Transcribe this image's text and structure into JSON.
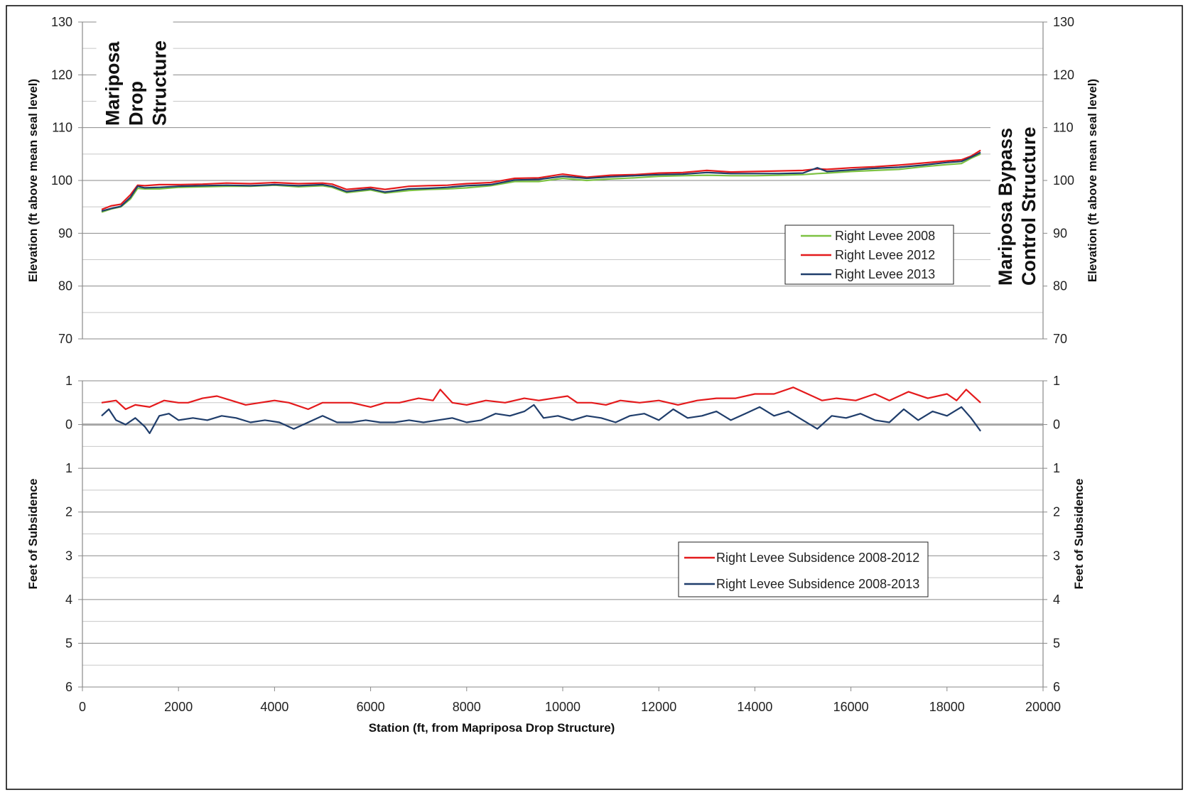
{
  "chart_data": [
    {
      "type": "line",
      "xlabel": "",
      "ylabel": "Elevation (ft above mean seal level)",
      "ylabel_right": "Elevation (ft above mean seal level)",
      "xlim": [
        0,
        20000
      ],
      "ylim": [
        70,
        130
      ],
      "yticks": [
        70,
        80,
        90,
        100,
        110,
        120,
        130
      ],
      "grid": true,
      "legend_position": "right",
      "annotations": [
        {
          "text": [
            "Mariposa",
            "Drop",
            "Structure"
          ],
          "x": 1000,
          "y": 123
        },
        {
          "text": [
            "Mariposa Bypass",
            "Control Structure"
          ],
          "x": 19400,
          "y": 90
        }
      ],
      "series": [
        {
          "name": "Right Levee 2008",
          "color": "#7dc242",
          "x": [
            400,
            600,
            800,
            1000,
            1150,
            1300,
            1600,
            2000,
            2500,
            3000,
            3500,
            4000,
            4500,
            5000,
            5200,
            5500,
            6000,
            6300,
            6800,
            7200,
            7600,
            8000,
            8500,
            9000,
            9500,
            10000,
            10500,
            11000,
            11500,
            12000,
            12500,
            13000,
            13500,
            14000,
            14500,
            15000,
            15300,
            15500,
            16000,
            16500,
            17000,
            17500,
            18000,
            18300,
            18500,
            18700
          ],
          "y": [
            94.0,
            94.6,
            95.0,
            96.5,
            98.5,
            98.4,
            98.4,
            98.7,
            98.8,
            98.9,
            98.9,
            99.1,
            98.8,
            99.0,
            98.7,
            97.7,
            98.2,
            97.6,
            98.1,
            98.3,
            98.4,
            98.6,
            99.0,
            99.8,
            99.8,
            100.4,
            100.0,
            100.3,
            100.5,
            100.8,
            100.9,
            101.0,
            100.9,
            100.9,
            101.0,
            101.1,
            101.3,
            101.4,
            101.7,
            101.9,
            102.1,
            102.6,
            103.0,
            103.2,
            104.2,
            105.0
          ]
        },
        {
          "name": "Right Levee 2012",
          "color": "#e41a1c",
          "x": [
            400,
            600,
            800,
            1000,
            1150,
            1300,
            1600,
            2000,
            2500,
            3000,
            3500,
            4000,
            4500,
            5000,
            5200,
            5500,
            6000,
            6300,
            6800,
            7200,
            7600,
            8000,
            8500,
            9000,
            9500,
            10000,
            10500,
            11000,
            11500,
            12000,
            12500,
            13000,
            13500,
            14000,
            14500,
            15000,
            15300,
            15500,
            16000,
            16500,
            17000,
            17500,
            18000,
            18300,
            18500,
            18700
          ],
          "y": [
            94.5,
            95.2,
            95.5,
            97.3,
            99.1,
            99.0,
            99.2,
            99.2,
            99.3,
            99.5,
            99.4,
            99.6,
            99.4,
            99.5,
            99.3,
            98.3,
            98.7,
            98.3,
            98.9,
            99.0,
            99.1,
            99.4,
            99.6,
            100.4,
            100.5,
            101.2,
            100.6,
            101.0,
            101.1,
            101.4,
            101.5,
            101.9,
            101.6,
            101.7,
            101.8,
            101.9,
            102.2,
            102.1,
            102.4,
            102.6,
            102.9,
            103.3,
            103.7,
            103.9,
            104.6,
            105.7
          ]
        },
        {
          "name": "Right Levee 2013",
          "color": "#1f3d6b",
          "x": [
            400,
            600,
            800,
            1000,
            1150,
            1300,
            1600,
            2000,
            2500,
            3000,
            3500,
            4000,
            4500,
            5000,
            5200,
            5500,
            6000,
            6300,
            6800,
            7200,
            7600,
            8000,
            8500,
            9000,
            9500,
            10000,
            10500,
            11000,
            11500,
            12000,
            12500,
            13000,
            13500,
            14000,
            14500,
            15000,
            15300,
            15500,
            16000,
            16500,
            17000,
            17500,
            18000,
            18300,
            18500,
            18700
          ],
          "y": [
            94.2,
            94.7,
            95.1,
            96.8,
            98.9,
            98.6,
            98.7,
            98.9,
            99.0,
            99.1,
            99.0,
            99.2,
            99.0,
            99.2,
            98.9,
            97.9,
            98.4,
            97.8,
            98.4,
            98.5,
            98.7,
            99.0,
            99.2,
            100.1,
            100.2,
            100.8,
            100.4,
            100.7,
            100.9,
            101.1,
            101.2,
            101.5,
            101.3,
            101.3,
            101.3,
            101.4,
            102.4,
            101.7,
            102.0,
            102.3,
            102.5,
            102.9,
            103.4,
            103.6,
            104.4,
            105.3
          ]
        }
      ]
    },
    {
      "type": "line",
      "xlabel": "Station (ft, from Mapriposa Drop Structure)",
      "ylabel": "Feet of Subsidence",
      "ylabel_right": "Feet of Subsidence",
      "xlim": [
        0,
        20000
      ],
      "xticks": [
        0,
        2000,
        4000,
        6000,
        8000,
        10000,
        12000,
        14000,
        16000,
        18000,
        20000
      ],
      "ylim": [
        -1,
        6
      ],
      "y_inverted": true,
      "yticks": [
        -1,
        0,
        1,
        2,
        3,
        4,
        5,
        6
      ],
      "ytick_labels": [
        "1",
        "0",
        "1",
        "2",
        "3",
        "4",
        "5",
        "6"
      ],
      "grid": true,
      "legend_position": "lower-right",
      "series": [
        {
          "name": "Right Levee Subsidence 2008-2012",
          "color": "#e41a1c",
          "x": [
            400,
            700,
            900,
            1100,
            1400,
            1700,
            2000,
            2200,
            2500,
            2800,
            3100,
            3400,
            3700,
            4000,
            4300,
            4700,
            5000,
            5300,
            5600,
            6000,
            6300,
            6600,
            7000,
            7300,
            7450,
            7700,
            8000,
            8400,
            8800,
            9200,
            9500,
            9800,
            10100,
            10300,
            10600,
            10900,
            11200,
            11600,
            12000,
            12400,
            12800,
            13200,
            13600,
            14000,
            14400,
            14800,
            15100,
            15400,
            15700,
            16100,
            16500,
            16800,
            17200,
            17600,
            18000,
            18200,
            18400,
            18700
          ],
          "y": [
            -0.5,
            -0.55,
            -0.35,
            -0.45,
            -0.4,
            -0.55,
            -0.5,
            -0.5,
            -0.6,
            -0.65,
            -0.55,
            -0.45,
            -0.5,
            -0.55,
            -0.5,
            -0.35,
            -0.5,
            -0.5,
            -0.5,
            -0.4,
            -0.5,
            -0.5,
            -0.6,
            -0.55,
            -0.8,
            -0.5,
            -0.45,
            -0.55,
            -0.5,
            -0.6,
            -0.55,
            -0.6,
            -0.65,
            -0.5,
            -0.5,
            -0.45,
            -0.55,
            -0.5,
            -0.55,
            -0.45,
            -0.55,
            -0.6,
            -0.6,
            -0.7,
            -0.7,
            -0.85,
            -0.7,
            -0.55,
            -0.6,
            -0.55,
            -0.7,
            -0.55,
            -0.75,
            -0.6,
            -0.7,
            -0.55,
            -0.8,
            -0.5
          ]
        },
        {
          "name": "Right Levee Subsidence 2008-2013",
          "color": "#1f3d6b",
          "x": [
            400,
            550,
            700,
            900,
            1100,
            1300,
            1400,
            1600,
            1800,
            2000,
            2300,
            2600,
            2900,
            3200,
            3500,
            3800,
            4100,
            4400,
            4700,
            5000,
            5300,
            5600,
            5900,
            6200,
            6500,
            6800,
            7100,
            7400,
            7700,
            8000,
            8300,
            8600,
            8900,
            9200,
            9400,
            9600,
            9900,
            10200,
            10500,
            10800,
            11100,
            11400,
            11700,
            12000,
            12300,
            12600,
            12900,
            13200,
            13500,
            13800,
            14100,
            14400,
            14700,
            15000,
            15300,
            15600,
            15900,
            16200,
            16500,
            16800,
            17100,
            17400,
            17700,
            18000,
            18300,
            18500,
            18700
          ],
          "y": [
            -0.2,
            -0.35,
            -0.1,
            0.0,
            -0.15,
            0.05,
            0.2,
            -0.2,
            -0.25,
            -0.1,
            -0.15,
            -0.1,
            -0.2,
            -0.15,
            -0.05,
            -0.1,
            -0.05,
            0.1,
            -0.05,
            -0.2,
            -0.05,
            -0.05,
            -0.1,
            -0.05,
            -0.05,
            -0.1,
            -0.05,
            -0.1,
            -0.15,
            -0.05,
            -0.1,
            -0.25,
            -0.2,
            -0.3,
            -0.45,
            -0.15,
            -0.2,
            -0.1,
            -0.2,
            -0.15,
            -0.05,
            -0.2,
            -0.25,
            -0.1,
            -0.35,
            -0.15,
            -0.2,
            -0.3,
            -0.1,
            -0.25,
            -0.4,
            -0.2,
            -0.3,
            -0.1,
            0.1,
            -0.2,
            -0.15,
            -0.25,
            -0.1,
            -0.05,
            -0.35,
            -0.1,
            -0.3,
            -0.2,
            -0.4,
            -0.15,
            0.15
          ]
        }
      ]
    }
  ]
}
